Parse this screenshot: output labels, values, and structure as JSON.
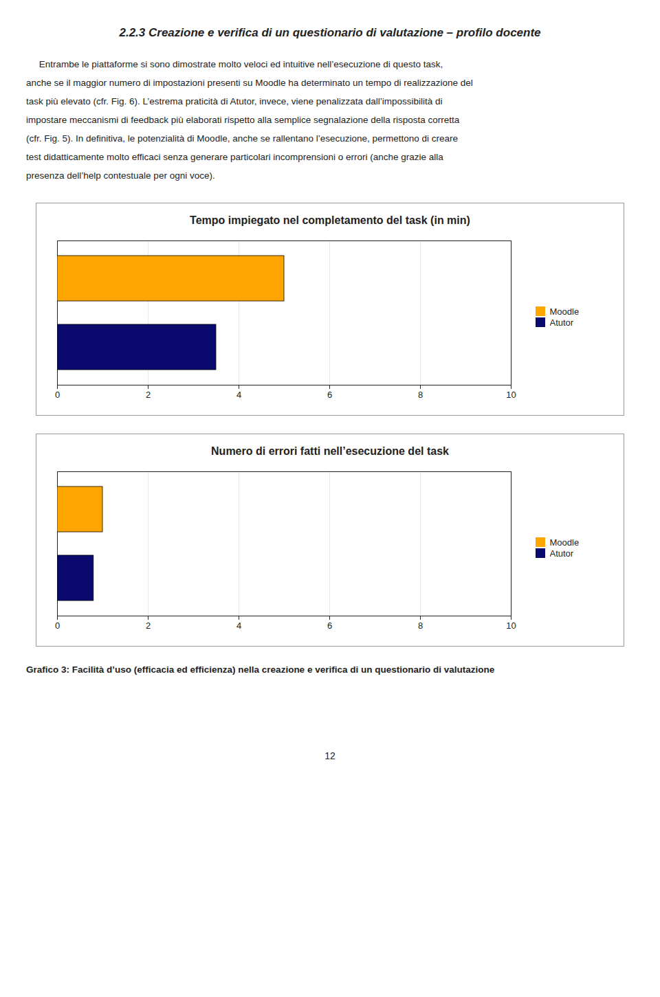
{
  "title": "2.2.3 Creazione e verifica di un questionario di valutazione – profilo docente",
  "paragraph": [
    "     Entrambe le piattaforme si sono dimostrate molto veloci ed intuitive nell’esecuzione di questo task,",
    "anche se il maggior numero di impostazioni presenti su Moodle ha determinato un tempo di realizzazione del",
    "task più elevato (cfr. Fig. 6). L’estrema praticità di Atutor, invece, viene penalizzata dall’impossibilità di",
    "impostare meccanismi di feedback più elaborati rispetto alla semplice segnalazione della risposta corretta",
    "(cfr. Fig. 5). In definitiva, le potenzialità di Moodle, anche se rallentano l’esecuzione, permettono di creare",
    "test didatticamente molto efficaci senza generare particolari incomprensioni o errori (anche grazie alla",
    "presenza dell’help contestuale per ogni voce)."
  ],
  "caption": "Grafico 3: Facilità d’uso (efficacia ed efficienza) nella creazione e verifica di un questionario di valutazione",
  "page_number": "12",
  "chart_data": [
    {
      "type": "bar",
      "orientation": "horizontal",
      "title": "Tempo impiegato nel completamento del task (in min)",
      "categories": [
        "Atutor",
        "Moodle"
      ],
      "values": [
        3.5,
        5.0
      ],
      "colors": [
        "#0a0a6e",
        "#FFA500"
      ],
      "xlim": [
        0,
        10
      ],
      "xticks": [
        0,
        2,
        4,
        6,
        8,
        10
      ],
      "grid": true,
      "legend": "right",
      "tick_labels": "x"
    },
    {
      "type": "bar",
      "orientation": "horizontal",
      "title": "Numero di errori fatti nell’esecuzione del task",
      "categories": [
        "Atutor",
        "Moodle"
      ],
      "values": [
        0.8,
        1.0
      ],
      "colors": [
        "#0a0a6e",
        "#FFA500"
      ],
      "xlim": [
        0,
        10
      ],
      "xticks": [
        0,
        2,
        4,
        6,
        8,
        10
      ],
      "grid": true,
      "legend": "right",
      "tick_labels": "x"
    }
  ]
}
